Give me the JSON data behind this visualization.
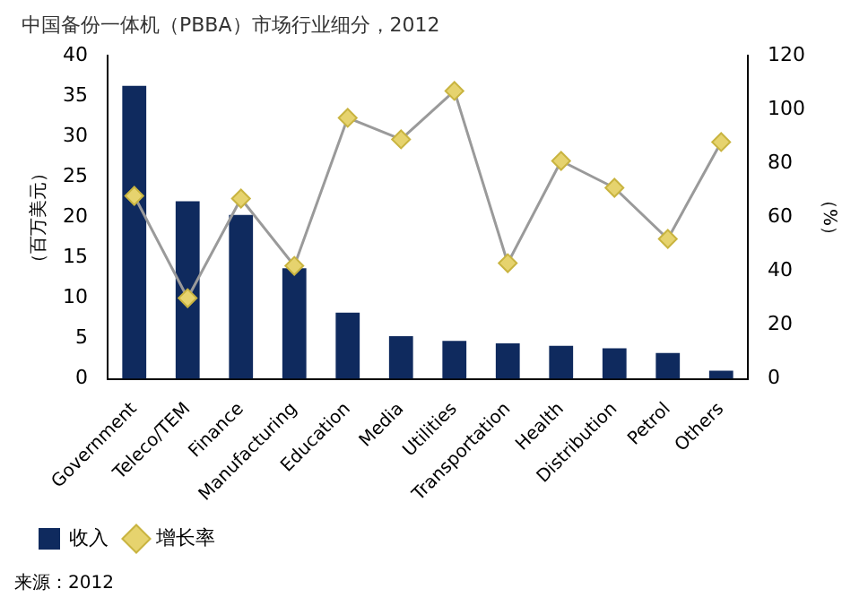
{
  "chart_data": {
    "type": "bar",
    "title": "中国备份一体机（PBBA）市场行业细分，2012",
    "categories": [
      "Government",
      "Teleco/TEM",
      "Finance",
      "Manufacturing",
      "Education",
      "Media",
      "Utilities",
      "Transportation",
      "Health",
      "Distribution",
      "Petrol",
      "Others"
    ],
    "series": [
      {
        "name": "收入",
        "color": "#0f2a5e",
        "values": [
          36.3,
          22,
          20.3,
          13.7,
          8.2,
          5.3,
          4.7,
          4.4,
          4.1,
          3.8,
          3.2,
          1.0
        ]
      },
      {
        "name": "增长率",
        "type": "line",
        "axis": "y2",
        "color": "#e6d36e",
        "values": [
          68,
          30,
          67,
          42,
          97,
          89,
          107,
          43,
          81,
          71,
          52,
          88
        ]
      }
    ],
    "ylabel": "（百万美元）",
    "y2label": "（%）",
    "ylim": [
      0,
      40
    ],
    "yticks": [
      0,
      5,
      10,
      15,
      20,
      25,
      30,
      35,
      40
    ],
    "y2lim": [
      0,
      120
    ],
    "y2ticks": [
      0,
      20,
      40,
      60,
      80,
      100,
      120
    ],
    "marker": "diamond",
    "grid": false,
    "legend": "bottom left",
    "annotations": [
      "来源：2012"
    ]
  }
}
